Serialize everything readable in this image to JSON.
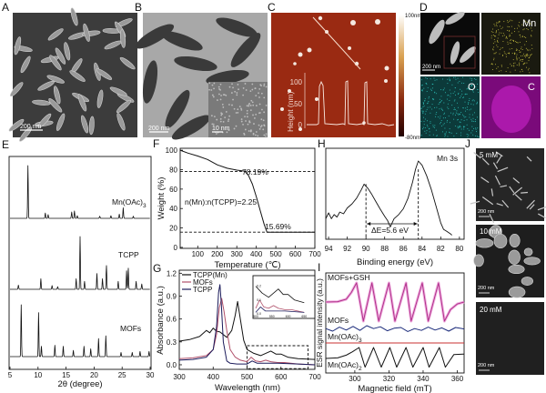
{
  "panel_labels": {
    "A": "A",
    "B": "B",
    "C": "C",
    "D": "D",
    "E": "E",
    "F": "F",
    "G": "G",
    "H": "H",
    "I": "I",
    "J": "J"
  },
  "panel_a": {
    "scale_bar": "200 nm"
  },
  "panel_b": {
    "scale_bar": "200 nm",
    "inset_scale_bar": "10 nm"
  },
  "panel_c": {
    "colorbar_max": "100nm",
    "colorbar_min": "-80nm",
    "inset_ylabel": "Height (nm)",
    "inset_yticks": [
      "0",
      "50",
      "100"
    ]
  },
  "panel_d": {
    "scale_bar": "200 nm",
    "maps": [
      "Mn",
      "O",
      "C"
    ],
    "colors": {
      "Mn": "#c8c040",
      "O": "#30c8c0",
      "C": "#d020d0"
    }
  },
  "panel_j": {
    "tiles": [
      {
        "label": "5 mM",
        "scale_bar": "200 nm"
      },
      {
        "label": "10 mM",
        "scale_bar": "200 nm"
      },
      {
        "label": "20 mM",
        "scale_bar": "200 nm"
      }
    ]
  },
  "chart_data": [
    {
      "id": "E",
      "type": "line",
      "xlabel": "2θ (degree)",
      "ylabel": "",
      "xlim": [
        5,
        30
      ],
      "xticks": [
        "5",
        "10",
        "15",
        "20",
        "25",
        "30"
      ],
      "grid": false,
      "series": [
        {
          "name": "Mn(OAc)3",
          "label_main": "Mn(OAc)",
          "label_sub": "3",
          "peaks": [
            [
              8.2,
              1.0
            ],
            [
              11.3,
              0.1
            ],
            [
              11.8,
              0.07
            ],
            [
              16.0,
              0.12
            ],
            [
              16.5,
              0.14
            ],
            [
              17.0,
              0.05
            ],
            [
              21.0,
              0.04
            ],
            [
              23.0,
              0.05
            ],
            [
              24.5,
              0.08
            ],
            [
              25.2,
              0.2
            ],
            [
              27.0,
              0.04
            ]
          ]
        },
        {
          "name": "TCPP",
          "peaks": [
            [
              6.5,
              0.08
            ],
            [
              10.5,
              0.2
            ],
            [
              12.5,
              0.07
            ],
            [
              13.5,
              0.05
            ],
            [
              16.8,
              0.2
            ],
            [
              17.5,
              1.0
            ],
            [
              18.3,
              0.15
            ],
            [
              20.5,
              0.3
            ],
            [
              21.5,
              0.2
            ],
            [
              22.2,
              0.45
            ],
            [
              24.3,
              0.15
            ],
            [
              25.8,
              0.35
            ],
            [
              26.1,
              0.4
            ],
            [
              27.5,
              0.15
            ],
            [
              28.5,
              0.1
            ]
          ]
        },
        {
          "name": "MOFs",
          "peaks": [
            [
              7.0,
              1.0
            ],
            [
              10.1,
              0.85
            ],
            [
              10.6,
              0.2
            ],
            [
              13.0,
              0.22
            ],
            [
              14.5,
              0.2
            ],
            [
              16.3,
              0.12
            ],
            [
              18.2,
              0.2
            ],
            [
              19.4,
              0.15
            ],
            [
              20.8,
              0.35
            ],
            [
              22.1,
              0.4
            ],
            [
              24.8,
              0.08
            ],
            [
              26.8,
              0.08
            ],
            [
              28.2,
              0.1
            ],
            [
              29.8,
              0.1
            ]
          ]
        }
      ]
    },
    {
      "id": "F",
      "type": "line",
      "xlabel": "Temperature (℃)",
      "ylabel": "Weight (%)",
      "xlim": [
        10,
        700
      ],
      "ylim": [
        -1,
        102
      ],
      "grid": false,
      "xticks": [
        100,
        200,
        300,
        400,
        500,
        600,
        700
      ],
      "yticks": [
        0,
        20,
        40,
        60,
        80,
        100
      ],
      "series": [
        {
          "x": [
            10,
            50,
            100,
            150,
            200,
            250,
            300,
            340,
            360,
            380,
            400,
            420,
            440,
            455,
            500,
            600,
            700
          ],
          "y": [
            100,
            97,
            94,
            90.5,
            85,
            81.5,
            79.5,
            78.5,
            74,
            65,
            52,
            38,
            24,
            15.7,
            15.7,
            15.6,
            15.7
          ]
        }
      ],
      "reference_lines": [
        78.19,
        15.69
      ],
      "annotations": [
        "78.19%",
        "15.69%",
        "n(Mn):n(TCPP)=2.25"
      ]
    },
    {
      "id": "G",
      "type": "line",
      "xlabel": "Wavelength (nm)",
      "ylabel": "Absorbance (a.u.)",
      "xlim": [
        300,
        700
      ],
      "ylim": [
        -0.06,
        1.24
      ],
      "grid": false,
      "xticks": [
        300,
        400,
        500,
        600,
        700
      ],
      "yticks": [
        "0.0",
        "0.3",
        "0.6",
        "0.9",
        "1.2"
      ],
      "legend": "top-left",
      "series": [
        {
          "name": "TCPP(Mn)",
          "color": "#111111",
          "x": [
            300,
            330,
            360,
            380,
            390,
            400,
            410,
            420,
            440,
            455,
            465,
            472,
            480,
            490,
            500,
            520,
            540,
            555,
            570,
            585,
            600,
            620,
            650,
            700
          ],
          "y": [
            0.31,
            0.33,
            0.37,
            0.45,
            0.42,
            0.48,
            0.44,
            0.43,
            0.36,
            0.45,
            0.65,
            0.83,
            0.6,
            0.32,
            0.2,
            0.15,
            0.12,
            0.15,
            0.18,
            0.14,
            0.14,
            0.1,
            0.08,
            0.07
          ]
        },
        {
          "name": "MOFs",
          "color": "#b0506a",
          "x": [
            300,
            340,
            380,
            400,
            410,
            418,
            425,
            432,
            440,
            450,
            465,
            480,
            500,
            512,
            525,
            540,
            555,
            570,
            590,
            610,
            650,
            700
          ],
          "y": [
            0.08,
            0.09,
            0.12,
            0.2,
            0.4,
            0.75,
            0.87,
            0.7,
            0.45,
            0.2,
            0.1,
            0.06,
            0.04,
            0.1,
            0.05,
            0.04,
            0.06,
            0.04,
            0.03,
            0.03,
            0.01,
            0.0
          ]
        },
        {
          "name": "TCPP",
          "color": "#1a1a5a",
          "x": [
            300,
            340,
            380,
            400,
            410,
            416,
            420,
            424,
            430,
            440,
            450,
            470,
            500,
            515,
            530,
            550,
            590,
            650,
            700
          ],
          "y": [
            0.06,
            0.07,
            0.1,
            0.2,
            0.5,
            0.95,
            1.05,
            0.8,
            0.3,
            0.05,
            0.02,
            0.01,
            0.01,
            0.05,
            0.02,
            0.02,
            0.02,
            0.01,
            0.0
          ]
        }
      ],
      "dashed_region": {
        "x": [
          500,
          680
        ],
        "y": [
          -0.05,
          0.25
        ]
      },
      "inset": {
        "xlim": [
          500,
          680
        ],
        "ylim": [
          -0.02,
          0.27
        ],
        "xticks": [
          "500",
          "550",
          "600",
          "650"
        ],
        "yticks": [
          "0.0",
          "0.1",
          "0.2"
        ]
      }
    },
    {
      "id": "H",
      "type": "line",
      "xlabel": "Binding energy (eV)",
      "ylabel": "",
      "xlim": [
        94.3,
        79.5
      ],
      "ylim": [
        -0.05,
        1.0
      ],
      "grid": false,
      "xticks": [
        94,
        92,
        90,
        88,
        86,
        84,
        82,
        80
      ],
      "series": [
        {
          "x": [
            94.3,
            94,
            93.7,
            93.4,
            93.1,
            92.8,
            92.4,
            92,
            91.5,
            91,
            90.5,
            90.2,
            89.8,
            89.4,
            89,
            88.5,
            88,
            87.7,
            87.4,
            87,
            86.5,
            86,
            85.5,
            85,
            84.7,
            84.4,
            84,
            83.5,
            83,
            82.5,
            82,
            81.7,
            81.4,
            81,
            80.8
          ],
          "y": [
            0.2,
            0.27,
            0.2,
            0.25,
            0.22,
            0.28,
            0.26,
            0.33,
            0.38,
            0.45,
            0.55,
            0.62,
            0.57,
            0.5,
            0.42,
            0.32,
            0.23,
            0.18,
            0.1,
            0.2,
            0.25,
            0.32,
            0.45,
            0.65,
            0.8,
            0.9,
            0.85,
            0.72,
            0.55,
            0.35,
            0.15,
            0.07,
            0.05,
            0.02,
            0.0
          ]
        }
      ],
      "reference_lines": [
        90.0,
        84.4
      ],
      "annotations": [
        "Mn 3s",
        "ΔE=5.6 eV"
      ]
    },
    {
      "id": "I",
      "type": "line",
      "xlabel": "Magnetic field (mT)",
      "ylabel": "ESR signal intensity (a.u.)",
      "xlim": [
        283,
        364
      ],
      "grid": false,
      "xticks": [
        300,
        320,
        340,
        360
      ],
      "series": [
        {
          "name": "MOFs+GSH",
          "color": "#b0308a",
          "x": [
            283,
            290,
            295,
            298,
            301,
            305,
            310,
            314,
            320,
            323.5,
            330,
            333,
            339.5,
            343,
            349,
            352.5,
            356,
            360,
            364
          ],
          "y": [
            0,
            0.02,
            0.15,
            0.5,
            1,
            -1,
            1,
            -1,
            1,
            -1,
            1,
            -1,
            1,
            -1,
            1,
            -1,
            -0.4,
            -0.1,
            0
          ]
        },
        {
          "name": "MOFs",
          "color": "#1a2a7a",
          "x": [
            283,
            287,
            291,
            295,
            299,
            303,
            307,
            311,
            315,
            319,
            323,
            327,
            331,
            335,
            339,
            343,
            347,
            351,
            355,
            359,
            364
          ],
          "y": [
            0.2,
            -0.5,
            0.6,
            -0.2,
            0.8,
            -0.3,
            1,
            0.2,
            0.7,
            -0.4,
            0.3,
            0.5,
            -0.6,
            0.2,
            -0.3,
            0.6,
            -0.2,
            0.4,
            -0.5,
            0.5,
            0.1
          ]
        },
        {
          "name": "Mn(OAc)3",
          "label_main": "Mn(OAc)",
          "label_sub": "3",
          "color": "#c83030",
          "x": [
            283,
            364
          ],
          "y": [
            0,
            0
          ]
        },
        {
          "name": "Mn(OAc)2",
          "label_main": "Mn(OAc)",
          "label_sub": "2",
          "color": "#111111",
          "x": [
            283,
            290,
            295,
            298.5,
            302.5,
            306,
            311,
            315.5,
            320.5,
            324.5,
            330,
            334,
            340,
            343.5,
            349.5,
            353,
            358,
            364
          ],
          "y": [
            0,
            0.05,
            0.3,
            0.6,
            1,
            -0.8,
            1,
            -0.8,
            1,
            -0.8,
            1,
            -0.8,
            1,
            -0.8,
            1,
            -0.8,
            0.35,
            0.4
          ]
        }
      ]
    }
  ]
}
